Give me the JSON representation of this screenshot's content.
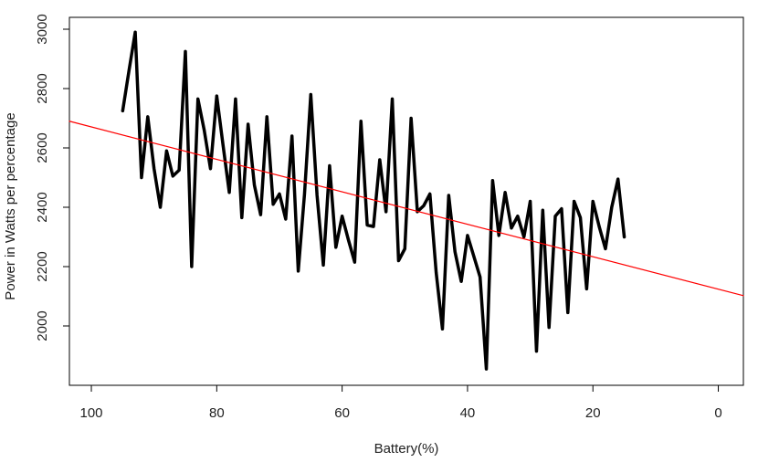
{
  "chart_data": {
    "type": "line",
    "title": "",
    "xlabel": "Battery(%)",
    "ylabel": "Power in Watts per percentage",
    "xlim": [
      103.5,
      -4
    ],
    "ylim": [
      1800,
      3040
    ],
    "x_ticks": [
      100,
      80,
      60,
      40,
      20,
      0
    ],
    "y_ticks": [
      2000,
      2200,
      2400,
      2600,
      2800,
      3000
    ],
    "grid": false,
    "series": [
      {
        "color": "#000000",
        "x": [
          95,
          94,
          93,
          92,
          91,
          90,
          89,
          88,
          87,
          86,
          85,
          84,
          83,
          82,
          81,
          80,
          79,
          78,
          77,
          76,
          75,
          74,
          73,
          72,
          71,
          70,
          69,
          68,
          67,
          66,
          65,
          64,
          63,
          62,
          61,
          60,
          59,
          58,
          57,
          56,
          55,
          54,
          53,
          52,
          51,
          50,
          49,
          48,
          47,
          46,
          45,
          44,
          43,
          42,
          41,
          40,
          39,
          38,
          37,
          36,
          35,
          34,
          33,
          32,
          31,
          30,
          29,
          28,
          27,
          26,
          25,
          24,
          23,
          22,
          21,
          20,
          19,
          18,
          17,
          16,
          15
        ],
        "y": [
          2725,
          2860,
          2990,
          2500,
          2705,
          2530,
          2400,
          2590,
          2505,
          2525,
          2925,
          2200,
          2765,
          2660,
          2530,
          2775,
          2610,
          2450,
          2765,
          2365,
          2680,
          2475,
          2375,
          2705,
          2410,
          2445,
          2360,
          2640,
          2185,
          2445,
          2780,
          2440,
          2205,
          2540,
          2265,
          2370,
          2290,
          2215,
          2690,
          2340,
          2335,
          2560,
          2385,
          2765,
          2220,
          2260,
          2700,
          2385,
          2405,
          2445,
          2180,
          1990,
          2440,
          2250,
          2150,
          2305,
          2235,
          2165,
          1855,
          2490,
          2305,
          2450,
          2330,
          2370,
          2300,
          2420,
          1915,
          2390,
          1995,
          2370,
          2395,
          2045,
          2420,
          2365,
          2125,
          2420,
          2335,
          2260,
          2400,
          2495,
          2300
        ]
      },
      {
        "color": "#ff0000",
        "x": [
          103.5,
          -4
        ],
        "y": [
          2690,
          2102
        ]
      }
    ]
  }
}
